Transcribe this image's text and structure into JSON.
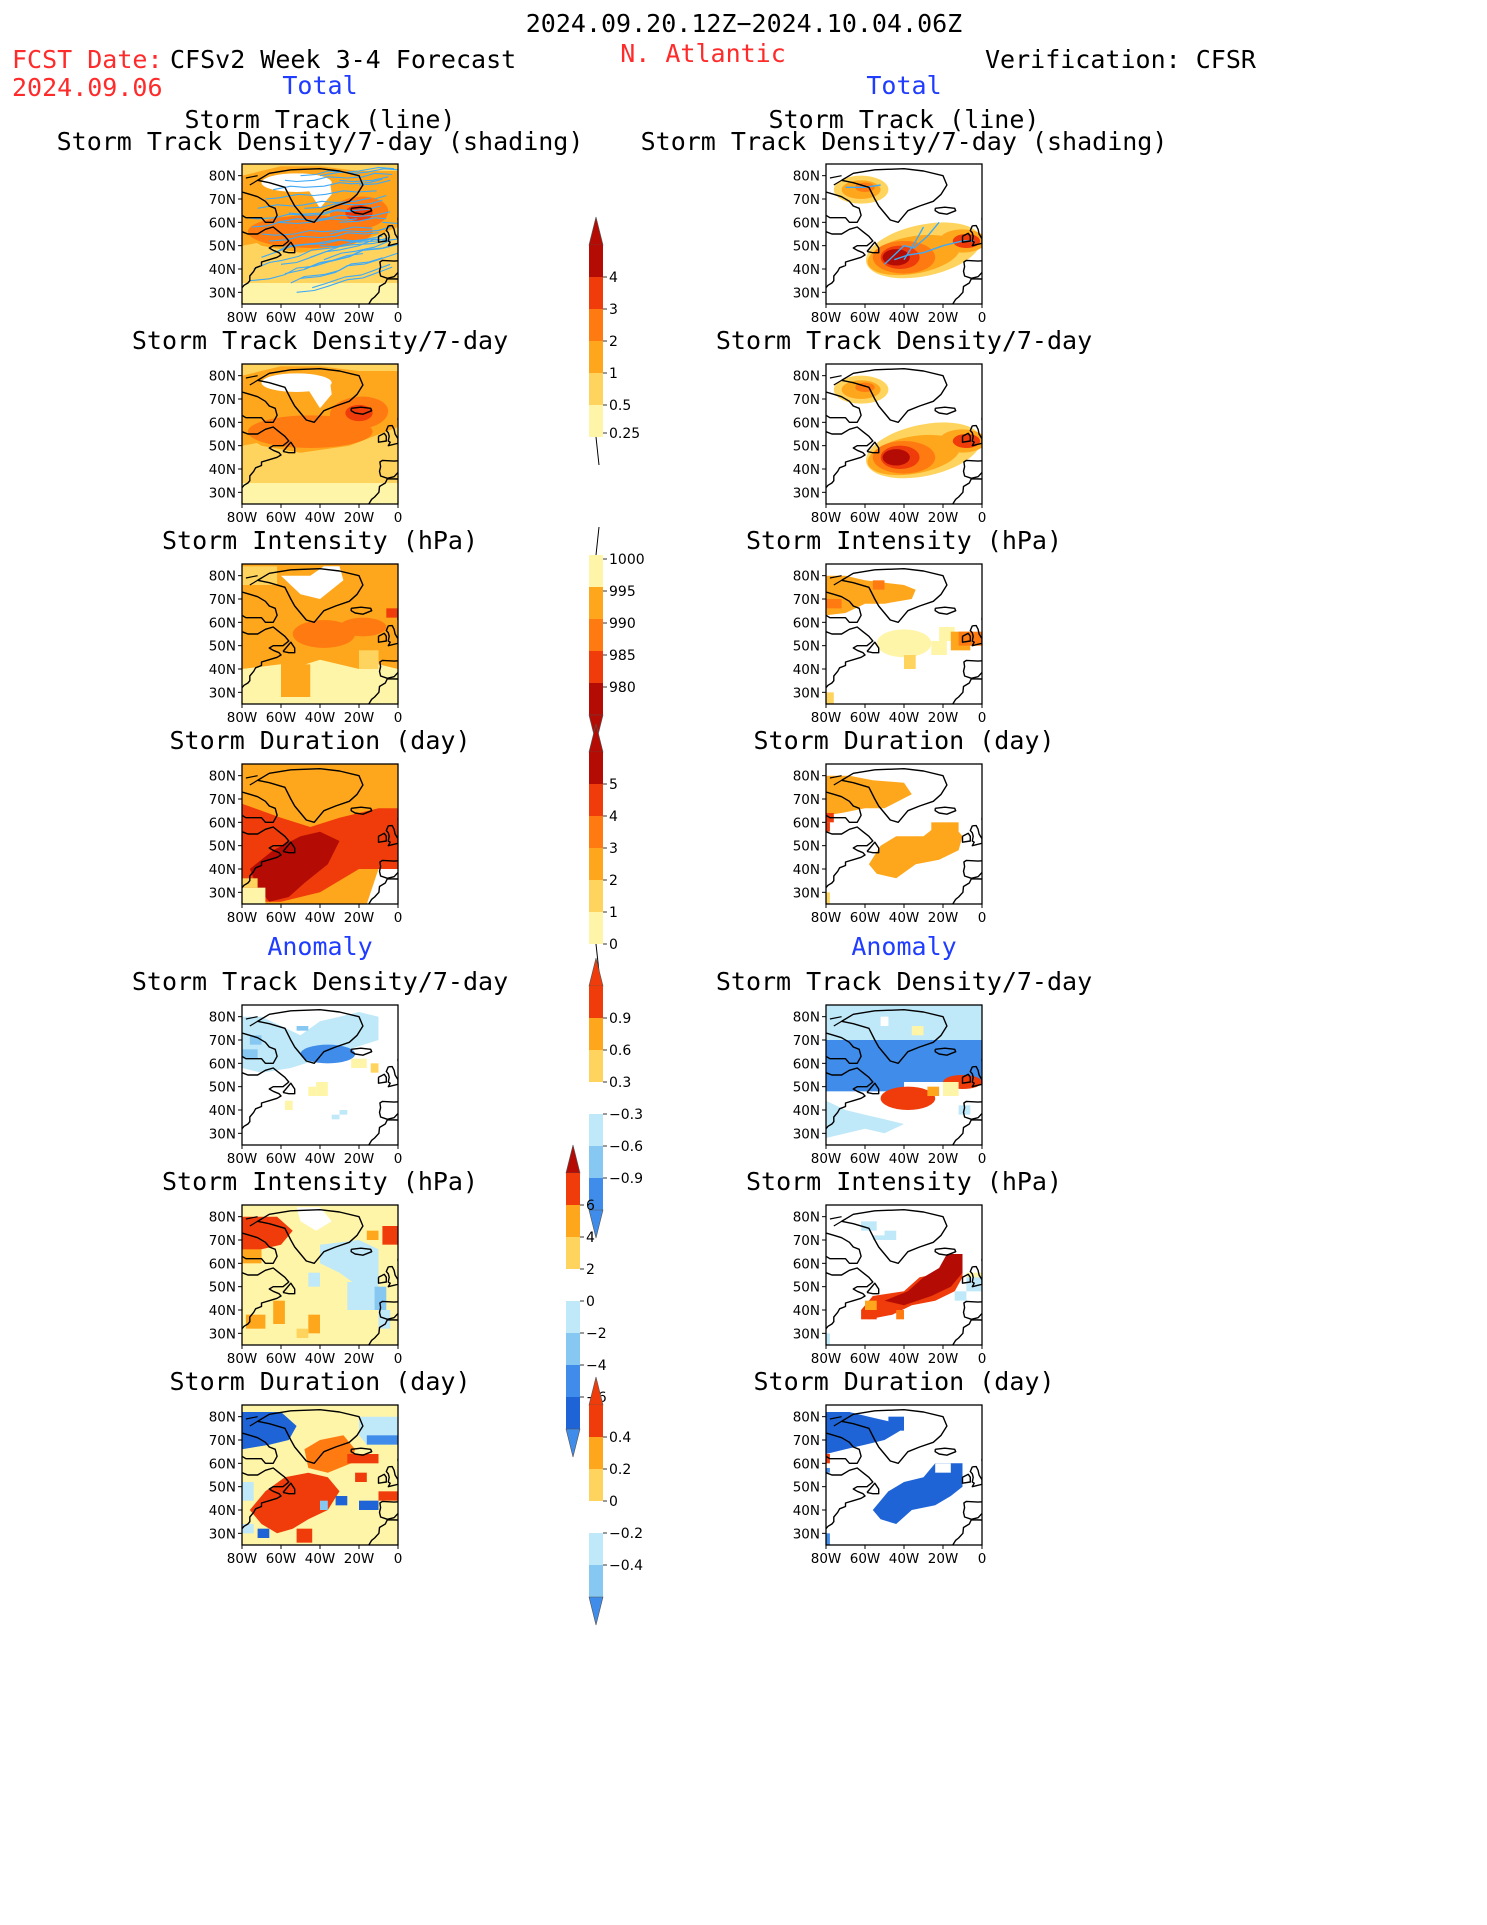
{
  "header": {
    "period": "2024.09.20.12Z−2024.10.04.06Z",
    "fcst_label": "FCST Date:",
    "fcst_date": "2024.09.06",
    "model_title": "CFSv2 Week 3-4 Forecast",
    "region": "N. Atlantic",
    "verification": "Verification: CFSR"
  },
  "sections": {
    "total_left": "Total",
    "total_right": "Total",
    "anomaly_left": "Anomaly",
    "anomaly_right": "Anomaly"
  },
  "panel_titles": {
    "track_line": "Storm Track (line)",
    "track_shading": "Storm Track Density/7-day (shading)",
    "density": "Storm Track Density/7-day",
    "intensity": "Storm Intensity (hPa)",
    "duration": "Storm Duration (day)"
  },
  "axes": {
    "lat_labels": [
      "80N",
      "70N",
      "60N",
      "50N",
      "40N",
      "30N"
    ],
    "lon_labels": [
      "80W",
      "60W",
      "40W",
      "20W",
      "0"
    ]
  },
  "colorbars": {
    "density_total": [
      "0.25",
      "0.5",
      "1",
      "2",
      "3",
      "4"
    ],
    "intensity_total": [
      "1000",
      "995",
      "990",
      "985",
      "980"
    ],
    "duration_total": [
      "0",
      "1",
      "2",
      "3",
      "4",
      "5"
    ],
    "density_anom": [
      "0.9",
      "0.6",
      "0.3",
      "−0.3",
      "−0.6",
      "−0.9"
    ],
    "intensity_anom": [
      "6",
      "4",
      "2",
      "0",
      "−2",
      "−4",
      "−6"
    ],
    "duration_anom": [
      "0.4",
      "0.2",
      "0",
      "−0.2",
      "−0.4"
    ]
  },
  "colors": {
    "lt_yellow": "#fff5a8",
    "yellow": "#ffd45e",
    "orange": "#ffa71c",
    "dk_orange": "#ff7b12",
    "red_orange": "#ef3c0a",
    "dk_red": "#b40b05",
    "lt_blue": "#bfe8f8",
    "mid_blue": "#87c8f2",
    "blue": "#3f8cea",
    "dk_blue": "#1e64d6",
    "track_line": "#3fa9f5"
  }
}
